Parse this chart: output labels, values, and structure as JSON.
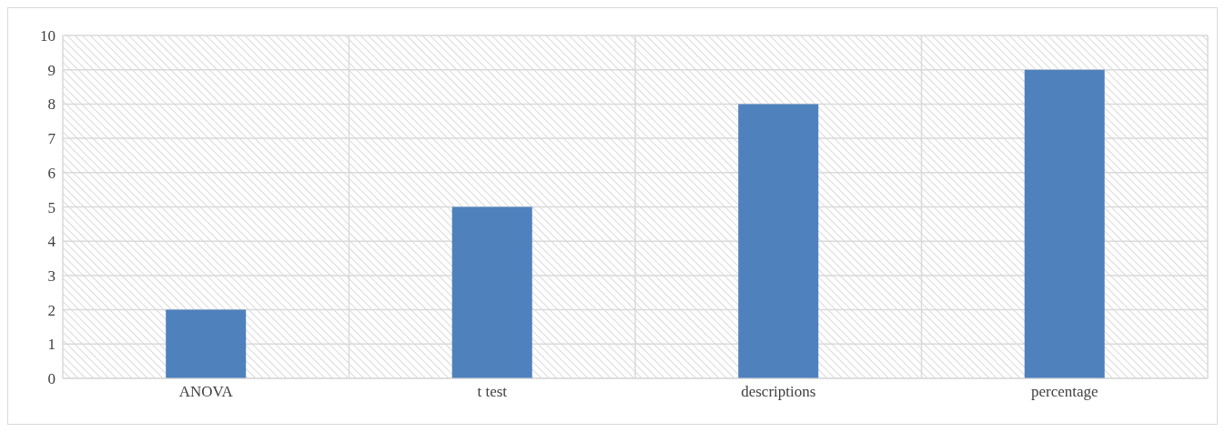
{
  "chart_data": {
    "type": "bar",
    "categories": [
      "ANOVA",
      "t test",
      "descriptions",
      "percentage"
    ],
    "values": [
      2,
      5,
      8,
      9
    ],
    "color": "#4f81bd",
    "ylim": [
      0,
      10
    ],
    "yticks": [
      0,
      1,
      2,
      3,
      4,
      5,
      6,
      7,
      8,
      9,
      10
    ],
    "grid": true
  }
}
